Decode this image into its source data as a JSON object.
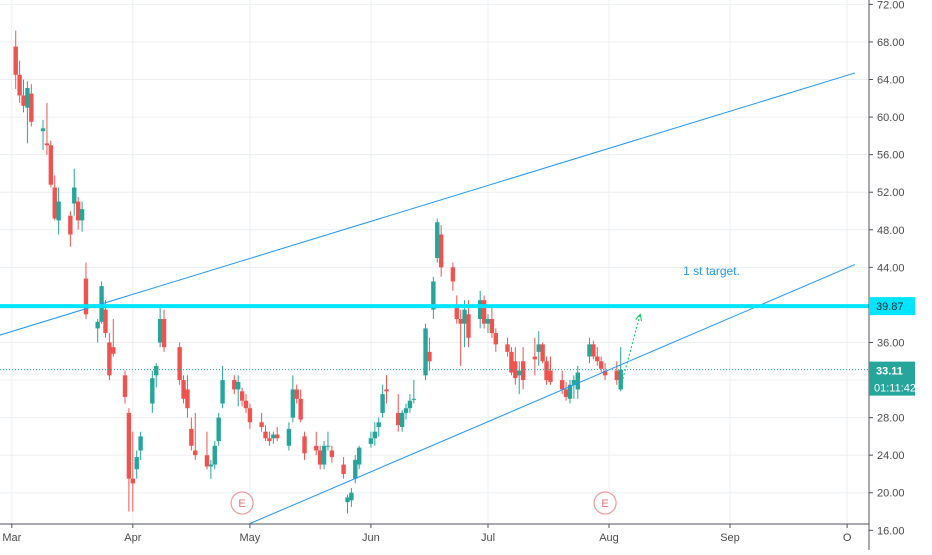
{
  "chart_data": {
    "type": "candlestick",
    "price_axis": {
      "ticks": [
        "72.00",
        "68.00",
        "64.00",
        "60.00",
        "56.00",
        "52.00",
        "48.00",
        "44.00",
        "40.00",
        "36.00",
        "32.00",
        "28.00",
        "24.00",
        "20.00",
        "16.00"
      ],
      "range": [
        12.2,
        75.5
      ]
    },
    "time_axis": {
      "ticks": [
        {
          "label": "Mar",
          "date": "2020-03-01"
        },
        {
          "label": "Apr",
          "date": "2020-04-01"
        },
        {
          "label": "May",
          "date": "2020-05-01"
        },
        {
          "label": "Jun",
          "date": "2020-06-01"
        },
        {
          "label": "Jul",
          "date": "2020-07-01"
        },
        {
          "label": "Aug",
          "date": "2020-08-01"
        },
        {
          "label": "Sep",
          "date": "2020-09-01"
        },
        {
          "label": "O",
          "date": "2020-10-01"
        }
      ]
    },
    "candles": [
      [
        "2020-03-02",
        67.5,
        69.2,
        63.0,
        64.5
      ],
      [
        "2020-03-03",
        64.5,
        66.0,
        61.5,
        62.3
      ],
      [
        "2020-03-04",
        62.3,
        64.0,
        60.5,
        61.2
      ],
      [
        "2020-03-05",
        61.0,
        63.8,
        57.2,
        63.1
      ],
      [
        "2020-03-06",
        62.5,
        63.5,
        59.0,
        59.5
      ],
      [
        "2020-03-09",
        58.5,
        59.7,
        56.5,
        58.8
      ],
      [
        "2020-03-10",
        57.2,
        61.5,
        56.0,
        57.0
      ],
      [
        "2020-03-11",
        57.0,
        57.5,
        52.5,
        52.8
      ],
      [
        "2020-03-12",
        52.5,
        53.8,
        49.0,
        49.2
      ],
      [
        "2020-03-13",
        49.0,
        52.5,
        47.5,
        51.0
      ],
      [
        "2020-03-16",
        49.5,
        50.0,
        46.2,
        47.5
      ],
      [
        "2020-03-17",
        50.8,
        54.5,
        49.5,
        52.5
      ],
      [
        "2020-03-18",
        51.0,
        51.5,
        48.0,
        49.0
      ],
      [
        "2020-03-19",
        49.0,
        51.0,
        47.8,
        50.2
      ],
      [
        "2020-03-20",
        42.8,
        44.5,
        38.5,
        39.0
      ],
      [
        "2020-03-23",
        37.5,
        38.5,
        36.0,
        38.2
      ],
      [
        "2020-03-24",
        38.2,
        42.5,
        38.0,
        42.0
      ],
      [
        "2020-03-25",
        39.5,
        40.5,
        36.5,
        37.0
      ],
      [
        "2020-03-26",
        36.0,
        37.0,
        32.0,
        32.5
      ],
      [
        "2020-03-27",
        35.5,
        38.5,
        34.5,
        34.8
      ],
      [
        "2020-03-30",
        32.5,
        33.0,
        29.5,
        30.2
      ],
      [
        "2020-03-31",
        28.5,
        29.0,
        18.0,
        21.5
      ],
      [
        "2020-04-01",
        21.5,
        26.5,
        18.0,
        21.0
      ],
      [
        "2020-04-02",
        22.5,
        24.5,
        21.5,
        23.8
      ],
      [
        "2020-04-03",
        24.5,
        26.5,
        23.5,
        26.0
      ],
      [
        "2020-04-06",
        29.5,
        33.0,
        28.5,
        32.2
      ],
      [
        "2020-04-07",
        32.5,
        33.8,
        31.2,
        33.5
      ],
      [
        "2020-04-08",
        36.0,
        40.0,
        35.5,
        38.5
      ],
      [
        "2020-04-09",
        38.5,
        39.5,
        35.0,
        35.5
      ],
      [
        "2020-04-13",
        35.5,
        36.0,
        31.5,
        32.0
      ],
      [
        "2020-04-14",
        32.0,
        32.5,
        29.5,
        30.0
      ],
      [
        "2020-04-15",
        31.0,
        32.5,
        28.0,
        29.0
      ],
      [
        "2020-04-16",
        26.8,
        28.0,
        24.5,
        25.0
      ],
      [
        "2020-04-17",
        24.5,
        28.5,
        23.5,
        24.0
      ],
      [
        "2020-04-20",
        24.0,
        26.5,
        22.5,
        22.8
      ],
      [
        "2020-04-21",
        22.8,
        23.5,
        21.5,
        23.0
      ],
      [
        "2020-04-22",
        23.0,
        25.5,
        22.5,
        25.0
      ],
      [
        "2020-04-23",
        25.5,
        28.5,
        25.0,
        28.0
      ],
      [
        "2020-04-24",
        29.5,
        33.5,
        29.0,
        32.0
      ],
      [
        "2020-04-27",
        32.0,
        32.5,
        30.5,
        31.0
      ],
      [
        "2020-04-28",
        31.0,
        32.5,
        29.2,
        31.8
      ],
      [
        "2020-04-29",
        30.8,
        31.2,
        29.2,
        29.8
      ],
      [
        "2020-04-30",
        29.8,
        30.5,
        28.5,
        29.0
      ],
      [
        "2020-05-01",
        29.0,
        29.5,
        26.8,
        27.5
      ],
      [
        "2020-05-04",
        27.5,
        28.5,
        26.5,
        27.0
      ],
      [
        "2020-05-05",
        26.5,
        27.2,
        25.5,
        25.8
      ],
      [
        "2020-05-06",
        25.8,
        26.5,
        25.0,
        25.5
      ],
      [
        "2020-05-07",
        25.8,
        26.5,
        25.2,
        26.2
      ],
      [
        "2020-05-08",
        26.2,
        27.0,
        25.5,
        25.8
      ],
      [
        "2020-05-11",
        25.0,
        27.5,
        24.5,
        26.8
      ],
      [
        "2020-05-12",
        28.0,
        32.5,
        27.5,
        31.0
      ],
      [
        "2020-05-13",
        31.0,
        31.5,
        29.5,
        30.0
      ],
      [
        "2020-05-14",
        30.0,
        31.0,
        27.5,
        27.8
      ],
      [
        "2020-05-15",
        26.0,
        26.5,
        23.5,
        24.2
      ],
      [
        "2020-05-18",
        25.0,
        26.5,
        24.0,
        24.5
      ],
      [
        "2020-05-19",
        24.5,
        25.0,
        22.5,
        23.0
      ],
      [
        "2020-05-20",
        23.0,
        25.5,
        22.5,
        25.0
      ],
      [
        "2020-05-21",
        25.0,
        26.5,
        24.5,
        25.0
      ],
      [
        "2020-05-22",
        24.5,
        25.0,
        23.2,
        23.8
      ],
      [
        "2020-05-25",
        23.0,
        23.8,
        21.5,
        22.0
      ],
      [
        "2020-05-26",
        19.0,
        19.8,
        17.8,
        19.5
      ],
      [
        "2020-05-27",
        19.2,
        20.5,
        18.5,
        20.0
      ],
      [
        "2020-05-28",
        21.5,
        24.0,
        21.0,
        23.5
      ],
      [
        "2020-05-29",
        23.0,
        25.0,
        22.5,
        24.8
      ],
      [
        "2020-06-01",
        25.2,
        26.5,
        24.8,
        25.8
      ],
      [
        "2020-06-02",
        25.8,
        27.5,
        25.0,
        26.5
      ],
      [
        "2020-06-03",
        27.0,
        28.0,
        26.0,
        27.5
      ],
      [
        "2020-06-04",
        28.5,
        31.5,
        28.0,
        30.5
      ],
      [
        "2020-06-05",
        31.0,
        32.5,
        29.5,
        30.8
      ],
      [
        "2020-06-08",
        28.5,
        30.5,
        26.5,
        27.2
      ],
      [
        "2020-06-09",
        27.0,
        28.8,
        26.5,
        28.5
      ],
      [
        "2020-06-10",
        28.5,
        29.5,
        27.8,
        29.0
      ],
      [
        "2020-06-11",
        29.0,
        30.5,
        28.5,
        29.8
      ],
      [
        "2020-06-12",
        30.0,
        32.0,
        29.5,
        30.0
      ],
      [
        "2020-06-15",
        32.5,
        38.0,
        32.0,
        37.5
      ],
      [
        "2020-06-16",
        35.0,
        36.5,
        33.0,
        34.0
      ],
      [
        "2020-06-17",
        39.5,
        43.0,
        38.5,
        42.5
      ],
      [
        "2020-06-18",
        45.0,
        49.2,
        44.5,
        48.8
      ],
      [
        "2020-06-19",
        47.5,
        48.5,
        43.0,
        44.0
      ],
      [
        "2020-06-22",
        44.0,
        44.5,
        41.5,
        42.5
      ],
      [
        "2020-06-23",
        40.0,
        41.0,
        38.0,
        38.5
      ],
      [
        "2020-06-24",
        38.5,
        39.5,
        33.5,
        38.0
      ],
      [
        "2020-06-25",
        38.0,
        40.5,
        35.5,
        39.5
      ],
      [
        "2020-06-26",
        39.0,
        40.5,
        35.5,
        36.5
      ],
      [
        "2020-06-29",
        38.5,
        41.5,
        37.5,
        40.5
      ],
      [
        "2020-06-30",
        40.5,
        41.0,
        37.5,
        38.0
      ],
      [
        "2020-07-01",
        38.0,
        39.0,
        37.0,
        38.5
      ],
      [
        "2020-07-02",
        38.5,
        40.0,
        36.5,
        37.0
      ],
      [
        "2020-07-03",
        37.0,
        37.5,
        35.0,
        35.8
      ],
      [
        "2020-07-06",
        35.8,
        36.5,
        34.5,
        35.0
      ],
      [
        "2020-07-07",
        35.0,
        35.5,
        32.5,
        32.8
      ],
      [
        "2020-07-08",
        34.0,
        35.5,
        31.5,
        32.2
      ],
      [
        "2020-07-09",
        32.5,
        34.0,
        30.5,
        33.0
      ],
      [
        "2020-07-10",
        34.0,
        35.5,
        31.0,
        32.0
      ],
      [
        "2020-07-13",
        34.5,
        36.5,
        32.5,
        34.2
      ],
      [
        "2020-07-14",
        35.0,
        37.2,
        33.5,
        35.8
      ],
      [
        "2020-07-15",
        35.8,
        36.0,
        33.8,
        34.0
      ],
      [
        "2020-07-16",
        34.0,
        34.5,
        31.5,
        32.0
      ],
      [
        "2020-07-17",
        33.0,
        34.5,
        31.5,
        31.8
      ],
      [
        "2020-07-20",
        32.0,
        33.0,
        30.5,
        31.0
      ],
      [
        "2020-07-21",
        31.0,
        31.8,
        29.8,
        30.2
      ],
      [
        "2020-07-22",
        30.0,
        32.0,
        29.5,
        31.5
      ],
      [
        "2020-07-23",
        31.5,
        32.5,
        30.0,
        32.0
      ],
      [
        "2020-07-24",
        31.0,
        33.5,
        30.0,
        32.8
      ],
      [
        "2020-07-27",
        34.5,
        36.5,
        33.8,
        35.8
      ],
      [
        "2020-07-28",
        35.8,
        36.2,
        34.2,
        34.5
      ],
      [
        "2020-07-29",
        34.5,
        35.5,
        33.5,
        34.0
      ],
      [
        "2020-07-30",
        34.0,
        34.5,
        32.8,
        33.2
      ],
      [
        "2020-07-31",
        33.0,
        33.8,
        32.0,
        32.5
      ],
      [
        "2020-08-03",
        33.0,
        34.0,
        31.5,
        32.0
      ],
      [
        "2020-08-04",
        31.0,
        35.5,
        30.8,
        33.1
      ]
    ],
    "price_line": {
      "label": "33.11",
      "value": 33.11,
      "countdown": "01:11:42",
      "color": "#26a69a"
    },
    "horizontal_line": {
      "label": "39.87",
      "value": 39.87,
      "color": "#00e5ff"
    },
    "trend_lines": [
      {
        "name": "upper-channel-line",
        "from": [
          "2020-02-20",
          35.9
        ],
        "to": [
          "2020-10-03",
          64.7
        ],
        "color": "#2196f3"
      },
      {
        "name": "lower-channel-line",
        "from": [
          "2020-04-09",
          12.8
        ],
        "to": [
          "2020-10-03",
          44.3
        ],
        "color": "#2196f3"
      }
    ],
    "projection_arrow": {
      "from": [
        "2020-08-04",
        31.3
      ],
      "to": [
        "2020-08-09",
        39.0
      ],
      "color": "#00c853"
    },
    "annotations": [
      {
        "text": "1 st target.",
        "at": [
          "2020-08-20",
          43.2
        ],
        "color": "#2196f3"
      }
    ],
    "event_markers": [
      {
        "label": "E",
        "date": "2020-04-29"
      },
      {
        "label": "E",
        "date": "2020-07-31"
      }
    ],
    "colors": {
      "up": "#26a69a",
      "down": "#ef5350",
      "grid": "#eceff2",
      "axis_text": "#4a4a4a"
    }
  }
}
